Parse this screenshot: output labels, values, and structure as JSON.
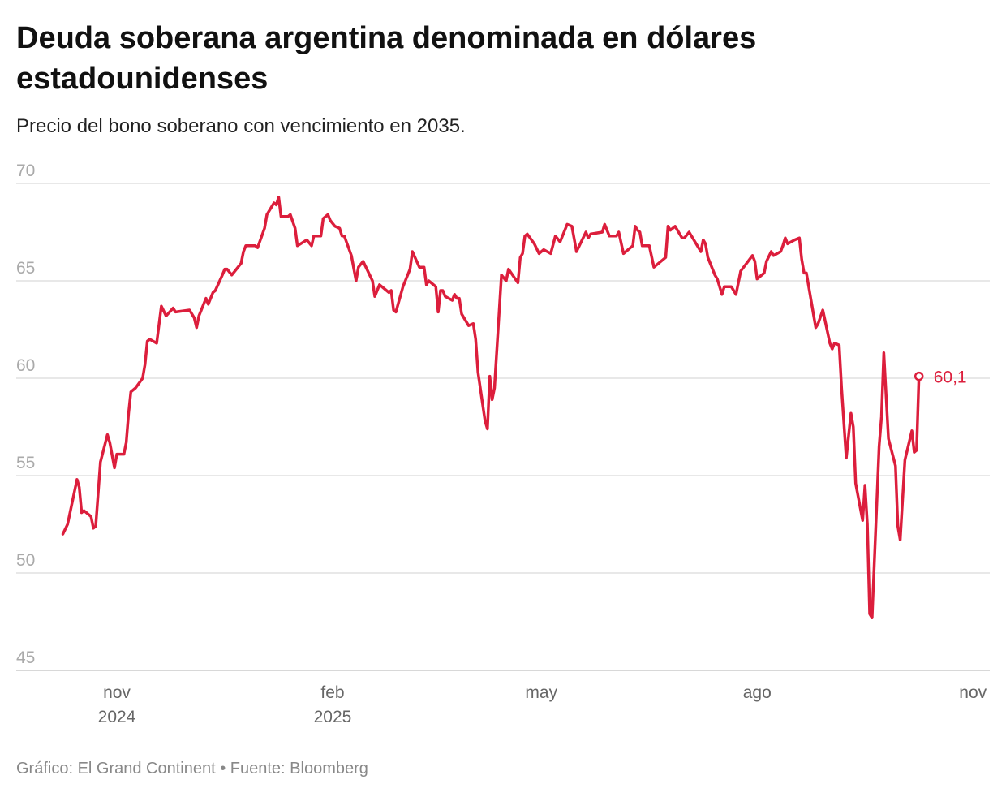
{
  "title": "Deuda soberana argentina denominada en dólares estadounidenses",
  "subtitle": "Precio del bono soberano con vencimiento en 2035.",
  "footer": "Gráfico: El Grand Continent • Fuente: Bloomberg",
  "chart_data": {
    "type": "line",
    "title": "Deuda soberana argentina denominada en dólares estadounidenses",
    "subtitle": "Precio del bono soberano con vencimiento en 2035.",
    "xlabel": "",
    "ylabel": "",
    "ylim": [
      45,
      70
    ],
    "xlim": [
      "2024-10-01",
      "2025-11-01"
    ],
    "yticks": [
      70,
      65,
      60,
      55,
      50,
      45
    ],
    "xticks": [
      {
        "date": "2024-11-01",
        "label": "nov",
        "sublabel": "2024"
      },
      {
        "date": "2025-02-01",
        "label": "feb",
        "sublabel": "2025"
      },
      {
        "date": "2025-05-01",
        "label": "may",
        "sublabel": ""
      },
      {
        "date": "2025-08-01",
        "label": "ago",
        "sublabel": ""
      },
      {
        "date": "2025-11-01",
        "label": "nov",
        "sublabel": ""
      }
    ],
    "grid": true,
    "color": "#dc1e3c",
    "last_value_label": "60,1",
    "x": [
      "2024-10-09",
      "2024-10-11",
      "2024-10-15",
      "2024-10-16",
      "2024-10-17",
      "2024-10-18",
      "2024-10-21",
      "2024-10-22",
      "2024-10-23",
      "2024-10-25",
      "2024-10-28",
      "2024-10-29",
      "2024-10-31",
      "2024-11-01",
      "2024-11-04",
      "2024-11-05",
      "2024-11-06",
      "2024-11-07",
      "2024-11-09",
      "2024-11-12",
      "2024-11-13",
      "2024-11-14",
      "2024-11-15",
      "2024-11-18",
      "2024-11-20",
      "2024-11-22",
      "2024-11-25",
      "2024-11-26",
      "2024-12-02",
      "2024-12-04",
      "2024-12-05",
      "2024-12-06",
      "2024-12-09",
      "2024-12-10",
      "2024-12-12",
      "2024-12-13",
      "2024-12-16",
      "2024-12-17",
      "2024-12-18",
      "2024-12-20",
      "2024-12-24",
      "2024-12-25",
      "2024-12-26",
      "2024-12-30",
      "2024-12-31",
      "2025-01-03",
      "2025-01-04",
      "2025-01-06",
      "2025-01-07",
      "2025-01-08",
      "2025-01-09",
      "2025-01-10",
      "2025-01-13",
      "2025-01-14",
      "2025-01-16",
      "2025-01-17",
      "2025-01-21",
      "2025-01-23",
      "2025-01-24",
      "2025-01-27",
      "2025-01-28",
      "2025-01-30",
      "2025-01-31",
      "2025-02-02",
      "2025-02-04",
      "2025-02-05",
      "2025-02-06",
      "2025-02-09",
      "2025-02-11",
      "2025-02-12",
      "2025-02-14",
      "2025-02-18",
      "2025-02-19",
      "2025-02-21",
      "2025-02-24",
      "2025-02-25",
      "2025-02-26",
      "2025-02-27",
      "2025-02-28",
      "2025-03-03",
      "2025-03-04",
      "2025-03-06",
      "2025-03-07",
      "2025-03-10",
      "2025-03-12",
      "2025-03-13",
      "2025-03-14",
      "2025-03-17",
      "2025-03-18",
      "2025-03-19",
      "2025-03-20",
      "2025-03-21",
      "2025-03-24",
      "2025-03-25",
      "2025-03-26",
      "2025-03-27",
      "2025-03-28",
      "2025-03-31",
      "2025-04-02",
      "2025-04-03",
      "2025-04-04",
      "2025-04-07",
      "2025-04-08",
      "2025-04-09",
      "2025-04-10",
      "2025-04-11",
      "2025-04-14",
      "2025-04-16",
      "2025-04-17",
      "2025-04-21",
      "2025-04-22",
      "2025-04-23",
      "2025-04-24",
      "2025-04-25",
      "2025-04-28",
      "2025-04-30",
      "2025-05-01",
      "2025-05-02",
      "2025-05-05",
      "2025-05-07",
      "2025-05-09",
      "2025-05-12",
      "2025-05-14",
      "2025-05-16",
      "2025-05-20",
      "2025-05-21",
      "2025-05-22",
      "2025-05-27",
      "2025-05-28",
      "2025-05-30",
      "2025-06-02",
      "2025-06-03",
      "2025-06-05",
      "2025-06-09",
      "2025-06-10",
      "2025-06-11",
      "2025-06-12",
      "2025-06-13",
      "2025-06-16",
      "2025-06-18",
      "2025-06-23",
      "2025-06-24",
      "2025-06-25",
      "2025-06-27",
      "2025-06-30",
      "2025-07-01",
      "2025-07-03",
      "2025-07-08",
      "2025-07-09",
      "2025-07-10",
      "2025-07-11",
      "2025-07-14",
      "2025-07-15",
      "2025-07-17",
      "2025-07-18",
      "2025-07-21",
      "2025-07-23",
      "2025-07-25",
      "2025-07-30",
      "2025-07-31",
      "2025-08-01",
      "2025-08-04",
      "2025-08-05",
      "2025-08-07",
      "2025-08-08",
      "2025-08-11",
      "2025-08-12",
      "2025-08-13",
      "2025-08-14",
      "2025-08-17",
      "2025-08-19",
      "2025-08-20",
      "2025-08-21",
      "2025-08-22",
      "2025-08-25",
      "2025-08-26",
      "2025-08-27",
      "2025-08-29",
      "2025-09-01",
      "2025-09-02",
      "2025-09-03",
      "2025-09-05",
      "2025-09-06",
      "2025-09-08",
      "2025-09-10",
      "2025-09-11",
      "2025-09-12",
      "2025-09-15",
      "2025-09-16",
      "2025-09-17",
      "2025-09-18",
      "2025-09-19",
      "2025-09-22",
      "2025-09-23",
      "2025-09-24",
      "2025-09-26",
      "2025-09-29",
      "2025-09-30",
      "2025-10-01",
      "2025-10-03",
      "2025-10-06",
      "2025-10-07",
      "2025-10-08",
      "2025-10-09"
    ],
    "y": [
      52.0,
      52.5,
      54.8,
      54.4,
      53.1,
      53.2,
      52.9,
      52.3,
      52.4,
      55.7,
      57.1,
      56.7,
      55.4,
      56.1,
      56.1,
      56.7,
      58.2,
      59.3,
      59.5,
      60.0,
      60.7,
      61.9,
      62.0,
      61.8,
      63.7,
      63.2,
      63.6,
      63.4,
      63.5,
      63.1,
      62.6,
      63.2,
      64.1,
      63.8,
      64.4,
      64.5,
      65.3,
      65.6,
      65.6,
      65.3,
      65.9,
      66.5,
      66.8,
      66.8,
      66.7,
      67.7,
      68.4,
      68.8,
      69.0,
      68.9,
      69.3,
      68.3,
      68.3,
      68.4,
      67.7,
      66.8,
      67.1,
      66.8,
      67.3,
      67.3,
      68.2,
      68.4,
      68.1,
      67.8,
      67.7,
      67.3,
      67.3,
      66.3,
      65.0,
      65.7,
      66.0,
      65.0,
      64.2,
      64.8,
      64.5,
      64.4,
      64.5,
      63.5,
      63.4,
      64.7,
      65.0,
      65.6,
      66.5,
      65.7,
      65.7,
      64.8,
      65.0,
      64.7,
      63.4,
      64.5,
      64.5,
      64.2,
      64.0,
      64.3,
      64.1,
      64.1,
      63.3,
      62.7,
      62.8,
      62.0,
      60.3,
      57.8,
      57.4,
      60.1,
      58.9,
      59.5,
      65.3,
      65.0,
      65.6,
      64.9,
      66.2,
      66.4,
      67.3,
      67.4,
      66.9,
      66.4,
      66.5,
      66.6,
      66.4,
      67.3,
      67.0,
      67.9,
      67.8,
      66.5,
      67.5,
      67.2,
      67.4,
      67.5,
      67.9,
      67.3,
      67.3,
      67.5,
      66.4,
      66.8,
      67.8,
      67.6,
      67.5,
      66.8,
      66.8,
      65.7,
      66.2,
      67.8,
      67.6,
      67.8,
      67.2,
      67.2,
      67.5,
      66.5,
      67.1,
      66.9,
      66.2,
      65.3,
      65.1,
      64.3,
      64.7,
      64.7,
      64.3,
      65.5,
      66.3,
      66.0,
      65.1,
      65.4,
      66.0,
      66.5,
      66.3,
      66.5,
      66.8,
      67.2,
      66.9,
      67.1,
      67.2,
      66.1,
      65.4,
      65.4,
      63.3,
      62.6,
      62.8,
      63.5,
      61.8,
      61.5,
      61.8,
      61.7,
      59.5,
      55.9,
      58.2,
      57.5,
      54.6,
      52.7,
      54.5,
      52.5,
      47.9,
      47.7,
      56.5,
      58.0,
      61.3,
      56.9,
      55.5,
      52.4,
      51.7,
      55.8,
      57.3,
      56.2,
      56.3,
      60.1
    ]
  }
}
